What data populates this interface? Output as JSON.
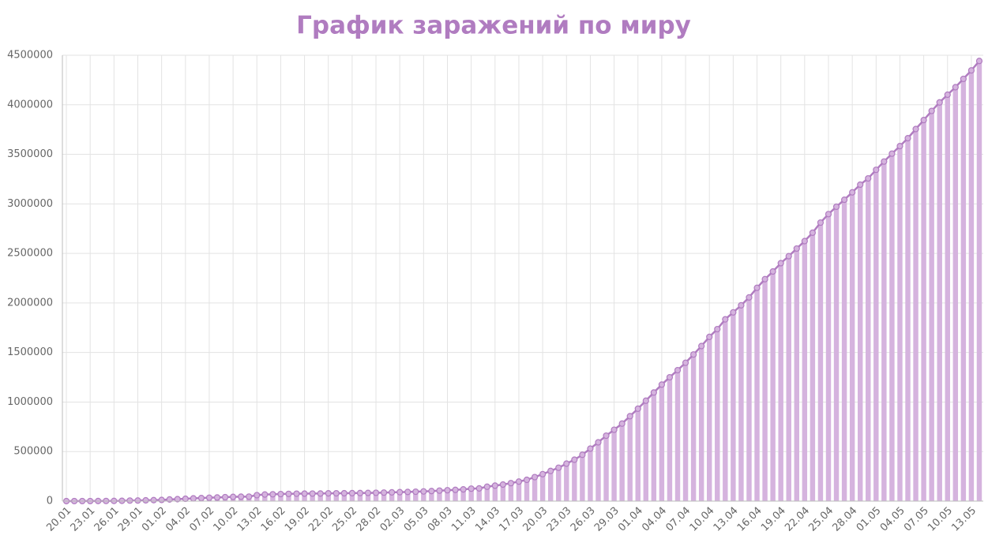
{
  "chart_data": {
    "type": "bar",
    "title": "График заражений по миру",
    "categories": [
      "20.01",
      null,
      null,
      "23.01",
      null,
      null,
      "26.01",
      null,
      null,
      "29.01",
      null,
      null,
      "01.02",
      null,
      null,
      "04.02",
      null,
      null,
      "07.02",
      null,
      null,
      "10.02",
      null,
      null,
      "13.02",
      null,
      null,
      "16.02",
      null,
      null,
      "19.02",
      null,
      null,
      "22.02",
      null,
      null,
      "25.02",
      null,
      null,
      "28.02",
      null,
      null,
      "02.03",
      null,
      null,
      "05.03",
      null,
      null,
      "08.03",
      null,
      null,
      "11.03",
      null,
      null,
      "14.03",
      null,
      null,
      "17.03",
      null,
      null,
      "20.03",
      null,
      null,
      "23.03",
      null,
      null,
      "26.03",
      null,
      null,
      "29.03",
      null,
      null,
      "01.04",
      null,
      null,
      "04.04",
      null,
      null,
      "07.04",
      null,
      null,
      "10.04",
      null,
      null,
      "13.04",
      null,
      null,
      "16.04",
      null,
      null,
      "19.04",
      null,
      null,
      "22.04",
      null,
      null,
      "25.04",
      null,
      null,
      "28.04",
      null,
      null,
      "01.05",
      null,
      null,
      "04.05",
      null,
      null,
      "07.05",
      null,
      null,
      "10.05",
      null,
      null,
      "13.05",
      null
    ],
    "values": [
      282,
      314,
      555,
      654,
      941,
      1434,
      2118,
      2927,
      5578,
      6166,
      8234,
      9927,
      12038,
      16787,
      19881,
      23892,
      27635,
      30817,
      34391,
      37120,
      40150,
      42762,
      44802,
      45221,
      60368,
      66885,
      69030,
      71224,
      73258,
      75136,
      75639,
      76197,
      76819,
      78572,
      78958,
      79561,
      80406,
      81388,
      82746,
      84112,
      86011,
      88369,
      90306,
      92840,
      95120,
      97886,
      101801,
      105847,
      109821,
      113590,
      118620,
      125875,
      128352,
      145205,
      156101,
      167454,
      181574,
      197102,
      214821,
      242570,
      272208,
      304507,
      336953,
      378235,
      418045,
      467653,
      529591,
      593291,
      660706,
      720117,
      782365,
      857487,
      932605,
      1013466,
      1095917,
      1176060,
      1249754,
      1321481,
      1396476,
      1479804,
      1565278,
      1657526,
      1735650,
      1834721,
      1904838,
      1976191,
      2056054,
      2152437,
      2240190,
      2317758,
      2401378,
      2472259,
      2549294,
      2624068,
      2708885,
      2811193,
      2896746,
      2971475,
      3041764,
      3116398,
      3193886,
      3256846,
      3343777,
      3427343,
      3506729,
      3583055,
      3662691,
      3755341,
      3845718,
      3938064,
      4024009,
      4101699,
      4177502,
      4261747,
      4347018,
      4442163
    ],
    "bar_color": "#d5b3de",
    "line_color": "#b07cc0",
    "line_overlay": true,
    "ylim": [
      0,
      4500000
    ],
    "yticks": [
      0,
      500000,
      1000000,
      1500000,
      2000000,
      2500000,
      3000000,
      3500000,
      4000000,
      4500000
    ],
    "grid": true
  }
}
